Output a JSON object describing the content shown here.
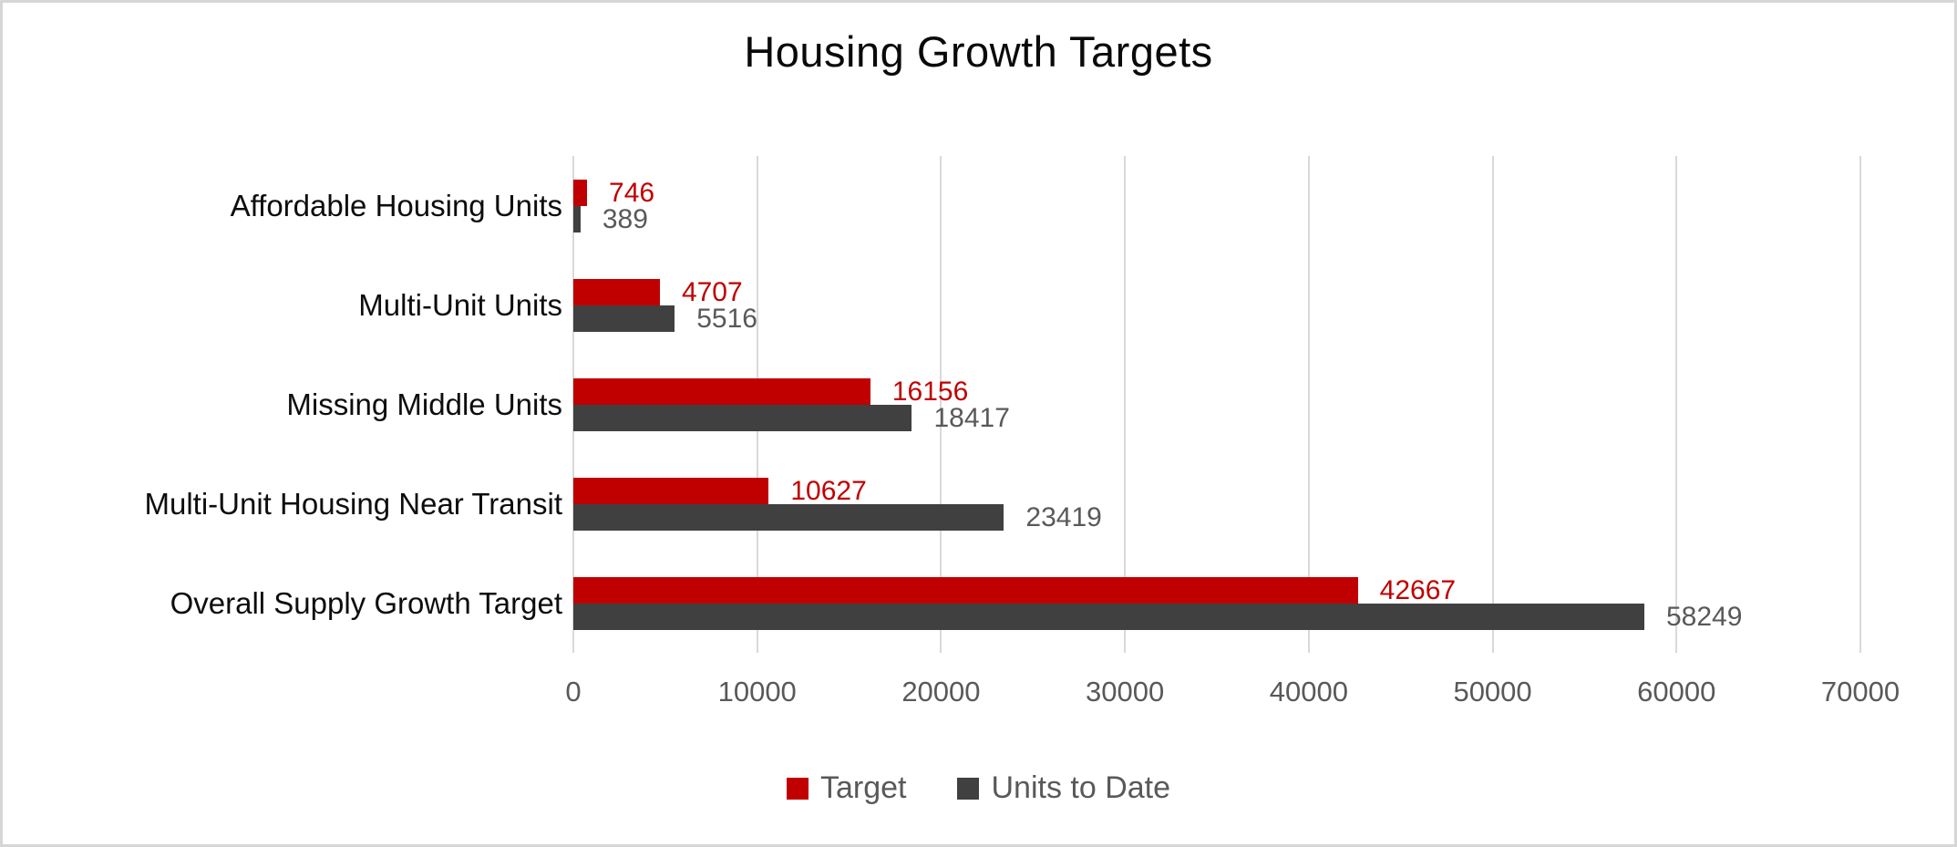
{
  "frame": {
    "background_color": "#ffffff",
    "border_color": "#d6d6d6"
  },
  "chart_data": {
    "type": "bar",
    "orientation": "horizontal",
    "title": "Housing Growth Targets",
    "categories": [
      "Affordable Housing Units",
      "Multi-Unit Units",
      "Missing Middle Units",
      "Multi-Unit Housing Near Transit",
      "Overall Supply Growth Target"
    ],
    "series": [
      {
        "name": "Target",
        "color": "#c00000",
        "label_color": "#c00000",
        "values": [
          746,
          4707,
          16156,
          10627,
          42667
        ]
      },
      {
        "name": "Units to Date",
        "color": "#404040",
        "label_color": "#595959",
        "values": [
          389,
          5516,
          18417,
          23419,
          58249
        ]
      }
    ],
    "data_labels_visible": true,
    "x_axis": {
      "min": 0,
      "max": 70000,
      "tick_step": 10000,
      "tick_labels": [
        "0",
        "10000",
        "20000",
        "30000",
        "40000",
        "50000",
        "60000",
        "70000"
      ],
      "tick_color": "#595959"
    },
    "gridlines": {
      "visible": true,
      "color": "#d9d9d9"
    },
    "legend": {
      "position": "bottom",
      "entries": [
        "Target",
        "Units to Date"
      ],
      "text_color": "#595959"
    }
  }
}
